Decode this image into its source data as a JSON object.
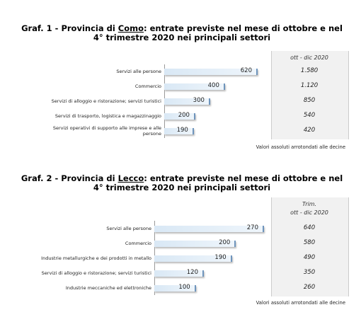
{
  "chart_data": [
    {
      "type": "bar",
      "title": [
        "Graf. 1 - Provincia di ",
        "Como",
        ": entrate previste nel mese di ottobre e nel 4° trimestre 2020 nei principali settori"
      ],
      "categories": [
        "Servizi alle persone",
        "Commercio",
        "Servizi di alloggio e ristorazione; servizi turistici",
        "Servizi di trasporto, logistica e magazzinaggio",
        "Servizi operativi di supporto alle imprese e alle persone"
      ],
      "values": [
        620,
        400,
        300,
        200,
        190
      ],
      "table": {
        "header": [
          "ott - dic 2020"
        ],
        "values": [
          1580,
          1120,
          850,
          540,
          420
        ],
        "value_labels": [
          "1.580",
          "1.120",
          "850",
          "540",
          "420"
        ]
      },
      "note": "Valori assoluti arrotondati alle decine"
    },
    {
      "type": "bar",
      "title": [
        "Graf. 2 - Provincia di ",
        "Lecco",
        ": entrate previste nel mese di ottobre e nel 4° trimestre 2020 nei principali settori"
      ],
      "categories": [
        "Servizi alle persone",
        "Commercio",
        "Industrie metallurgiche e dei prodotti in metallo",
        "Servizi di alloggio e ristorazione; servizi turistici",
        "Industrie meccaniche ed elettroniche"
      ],
      "values": [
        270,
        200,
        190,
        120,
        100
      ],
      "table": {
        "header": [
          "Trim.",
          "ott - dic 2020"
        ],
        "values": [
          640,
          580,
          490,
          350,
          260
        ],
        "value_labels": [
          "640",
          "580",
          "490",
          "350",
          "260"
        ]
      },
      "note": "Valori assoluti arrotondati alle decine"
    }
  ]
}
